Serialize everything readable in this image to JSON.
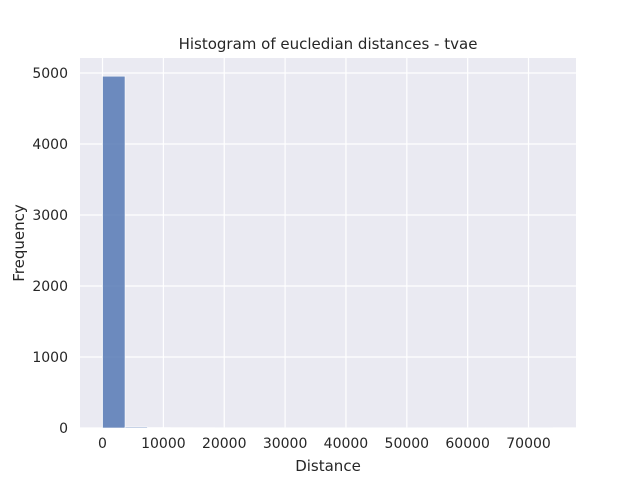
{
  "chart_data": {
    "type": "bar",
    "title": "Histogram of eucledian distances - tvae",
    "xlabel": "Distance",
    "ylabel": "Frequency",
    "xlim": [
      -3700,
      77800
    ],
    "ylim": [
      0,
      5000
    ],
    "xticks": [
      0,
      10000,
      20000,
      30000,
      40000,
      50000,
      60000,
      70000
    ],
    "xtick_labels": [
      "0",
      "10000",
      "20000",
      "30000",
      "40000",
      "50000",
      "60000",
      "70000"
    ],
    "yticks": [
      0,
      1000,
      2000,
      3000,
      4000,
      5000
    ],
    "ytick_labels": [
      "0",
      "1000",
      "2000",
      "3000",
      "4000",
      "5000"
    ],
    "grid": true,
    "colors": {
      "background": "#eaeaf2",
      "grid": "#ffffff",
      "bar": "#4c72b0"
    },
    "bins": [
      {
        "x0": 0,
        "x1": 3700,
        "count": 4955
      },
      {
        "x0": 3700,
        "x1": 7400,
        "count": 14
      },
      {
        "x0": 7400,
        "x1": 11100,
        "count": 6
      },
      {
        "x0": 11100,
        "x1": 14800,
        "count": 4
      },
      {
        "x0": 14800,
        "x1": 18500,
        "count": 3
      },
      {
        "x0": 18500,
        "x1": 22200,
        "count": 2
      },
      {
        "x0": 22200,
        "x1": 25900,
        "count": 2
      },
      {
        "x0": 25900,
        "x1": 29600,
        "count": 1
      },
      {
        "x0": 29600,
        "x1": 33300,
        "count": 1
      },
      {
        "x0": 33300,
        "x1": 37000,
        "count": 1
      },
      {
        "x0": 37000,
        "x1": 40700,
        "count": 1
      },
      {
        "x0": 40700,
        "x1": 44400,
        "count": 1
      },
      {
        "x0": 44400,
        "x1": 48100,
        "count": 1
      },
      {
        "x0": 48100,
        "x1": 51800,
        "count": 1
      },
      {
        "x0": 51800,
        "x1": 55500,
        "count": 1
      },
      {
        "x0": 55500,
        "x1": 59200,
        "count": 1
      },
      {
        "x0": 59200,
        "x1": 62900,
        "count": 1
      },
      {
        "x0": 62900,
        "x1": 66600,
        "count": 1
      },
      {
        "x0": 66600,
        "x1": 70300,
        "count": 1
      },
      {
        "x0": 70300,
        "x1": 74000,
        "count": 1
      }
    ]
  }
}
